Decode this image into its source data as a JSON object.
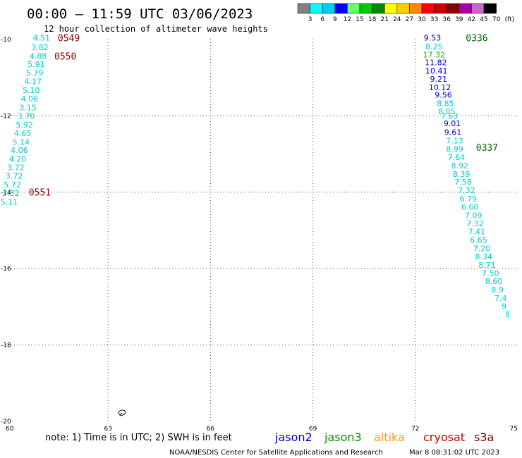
{
  "chart_data": {
    "type": "scatter",
    "title": "00:00 – 11:59 UTC 03/06/2023",
    "subtitle": "12 hour collection of altimeter wave heights",
    "xlim": [
      60,
      75
    ],
    "ylim": [
      -20,
      -10
    ],
    "x_ticks": [
      "60",
      "63",
      "66",
      "69",
      "72",
      "75"
    ],
    "y_ticks": [
      "-10",
      "-12",
      "-14",
      "-16",
      "-18",
      "-20"
    ],
    "grid": true,
    "colorscale": {
      "labels": [
        "3",
        "6",
        "9",
        "12",
        "15",
        "18",
        "21",
        "24",
        "27",
        "30",
        "33",
        "36",
        "39",
        "42",
        "45",
        "70"
      ],
      "unit": "(ft)",
      "colors": [
        "#808080",
        "#00ffff",
        "#00ccff",
        "#0000ff",
        "#66ff66",
        "#00cc00",
        "#008800",
        "#ffff00",
        "#ffcc00",
        "#ff8800",
        "#ff0000",
        "#cc0000",
        "#880000",
        "#aa00aa",
        "#cc66cc",
        "#000000"
      ]
    },
    "series": [
      {
        "color": "#00cccc",
        "points": [
          {
            "x": 61.05,
            "y": -9.95,
            "v": "4.51"
          },
          {
            "x": 61.0,
            "y": -10.2,
            "v": "3.82"
          },
          {
            "x": 60.95,
            "y": -10.43,
            "v": "4.88"
          },
          {
            "x": 60.9,
            "y": -10.65,
            "v": "5.91"
          },
          {
            "x": 60.85,
            "y": -10.88,
            "v": "5.79"
          },
          {
            "x": 60.8,
            "y": -11.1,
            "v": "4.17"
          },
          {
            "x": 60.75,
            "y": -11.33,
            "v": "5.10"
          },
          {
            "x": 60.7,
            "y": -11.55,
            "v": "4.06"
          },
          {
            "x": 60.65,
            "y": -11.78,
            "v": "3.15"
          },
          {
            "x": 60.6,
            "y": -12.0,
            "v": "3.70"
          },
          {
            "x": 60.55,
            "y": -12.23,
            "v": "5.92"
          },
          {
            "x": 60.5,
            "y": -12.45,
            "v": "4.65"
          },
          {
            "x": 60.45,
            "y": -12.68,
            "v": "5.14"
          },
          {
            "x": 60.4,
            "y": -12.9,
            "v": "4.06"
          },
          {
            "x": 60.35,
            "y": -13.13,
            "v": "4.20"
          },
          {
            "x": 60.3,
            "y": -13.35,
            "v": "3.72"
          },
          {
            "x": 60.25,
            "y": -13.57,
            "v": "3.72"
          },
          {
            "x": 60.2,
            "y": -13.8,
            "v": "5.72"
          },
          {
            "x": 60.15,
            "y": -14.02,
            "v": "3.32"
          },
          {
            "x": 60.1,
            "y": -14.25,
            "v": "5.11"
          }
        ]
      },
      {
        "color": "#0000cc",
        "points": [
          {
            "x": 72.5,
            "y": -9.95,
            "v": "9.53"
          },
          {
            "x": 72.6,
            "y": -10.6,
            "v": "11.82"
          },
          {
            "x": 72.62,
            "y": -10.82,
            "v": "10.41"
          },
          {
            "x": 72.68,
            "y": -11.03,
            "v": "9.21"
          },
          {
            "x": 72.72,
            "y": -11.25,
            "v": "10.12"
          },
          {
            "x": 72.82,
            "y": -11.45,
            "v": "9.56"
          },
          {
            "x": 73.08,
            "y": -12.2,
            "v": "9.01"
          },
          {
            "x": 73.1,
            "y": -12.43,
            "v": "9.61"
          }
        ]
      },
      {
        "color": "#00cccc",
        "points": [
          {
            "x": 72.55,
            "y": -10.18,
            "v": "8.25"
          },
          {
            "x": 72.88,
            "y": -11.67,
            "v": "8.85"
          },
          {
            "x": 72.92,
            "y": -11.88,
            "v": "8.05"
          },
          {
            "x": 73.0,
            "y": -12.0,
            "v": "7.63"
          },
          {
            "x": 73.15,
            "y": -12.65,
            "v": "7.13"
          },
          {
            "x": 73.15,
            "y": -12.87,
            "v": "8.99"
          },
          {
            "x": 73.2,
            "y": -13.08,
            "v": "7.64"
          },
          {
            "x": 73.3,
            "y": -13.3,
            "v": "8.92"
          },
          {
            "x": 73.35,
            "y": -13.52,
            "v": "8.39"
          },
          {
            "x": 73.4,
            "y": -13.73,
            "v": "7.58"
          },
          {
            "x": 73.5,
            "y": -13.95,
            "v": "7.32"
          },
          {
            "x": 73.55,
            "y": -14.17,
            "v": "6.79"
          },
          {
            "x": 73.6,
            "y": -14.38,
            "v": "6.60"
          },
          {
            "x": 73.7,
            "y": -14.6,
            "v": "7.09"
          },
          {
            "x": 73.75,
            "y": -14.82,
            "v": "7.32"
          },
          {
            "x": 73.8,
            "y": -15.03,
            "v": "7.41"
          },
          {
            "x": 73.85,
            "y": -15.25,
            "v": "6.65"
          },
          {
            "x": 73.95,
            "y": -15.47,
            "v": "7.20"
          },
          {
            "x": 74.0,
            "y": -15.68,
            "v": "8.34"
          },
          {
            "x": 74.1,
            "y": -15.9,
            "v": "8.71"
          },
          {
            "x": 74.2,
            "y": -16.12,
            "v": "7.50"
          },
          {
            "x": 74.3,
            "y": -16.33,
            "v": "8.60"
          },
          {
            "x": 74.4,
            "y": -16.55,
            "v": "8.9"
          },
          {
            "x": 74.5,
            "y": -16.77,
            "v": "7.4"
          },
          {
            "x": 74.6,
            "y": -16.98,
            "v": "9"
          },
          {
            "x": 74.7,
            "y": -17.2,
            "v": "8"
          }
        ]
      },
      {
        "color": "#33aa00",
        "points": [
          {
            "x": 72.55,
            "y": -10.4,
            "v": "17.32"
          }
        ]
      }
    ],
    "time_labels": [
      {
        "x": 61.85,
        "y": -9.95,
        "v": "0549",
        "color": "#880000"
      },
      {
        "x": 61.75,
        "y": -10.43,
        "v": "0550",
        "color": "#880000"
      },
      {
        "x": 61.0,
        "y": -13.99,
        "v": "0551",
        "color": "#880000"
      },
      {
        "x": 73.8,
        "y": -9.95,
        "v": "0336",
        "color": "#006600"
      },
      {
        "x": 74.1,
        "y": -12.82,
        "v": "0337",
        "color": "#006600"
      }
    ]
  },
  "footer": {
    "note": "note: 1) Time is in UTC; 2) SWH is in feet",
    "missions": [
      {
        "name": "jason2",
        "color": "#0000cc"
      },
      {
        "name": "jason3",
        "color": "#009900"
      },
      {
        "name": "altika",
        "color": "#ff9900"
      },
      {
        "name": "cryosat",
        "color": "#cc0000"
      },
      {
        "name": "s3a",
        "color": "#880000"
      }
    ],
    "credit": "NOAA/NESDIS Center for Satellite Applications and Research",
    "timestamp": "Mar  8 08:31:02 UTC 2023"
  }
}
